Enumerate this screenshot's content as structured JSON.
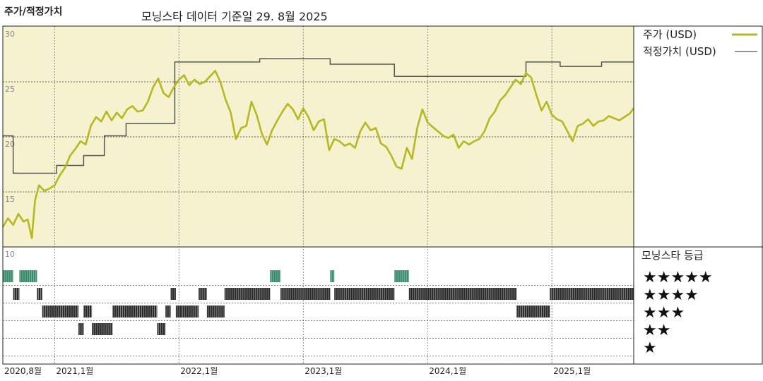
{
  "header": {
    "left_title": "주가/적정가치",
    "subtitle": "모닝스타 데이터 기준일 29. 8월 2025"
  },
  "chart_data": {
    "type": "line",
    "title": "주가/적정가치",
    "subtitle": "모닝스타 데이터 기준일 29. 8월 2025",
    "y_ticks": [
      "30",
      "25",
      "20",
      "15",
      "10"
    ],
    "ylim": [
      10,
      30
    ],
    "grid": true,
    "x_labels": [
      {
        "label": "2020,8월",
        "t": 0
      },
      {
        "label": "2021,1월",
        "t": 5
      },
      {
        "label": "2022,1월",
        "t": 17
      },
      {
        "label": "2023,1월",
        "t": 29
      },
      {
        "label": "2024,1월",
        "t": 41
      },
      {
        "label": "2025,1월",
        "t": 53
      }
    ],
    "t_range": [
      0,
      60.9
    ],
    "t_unit": "months since 2020-08",
    "legend": [
      {
        "name": "주가 (USD)",
        "color": "#b5b820",
        "style": "thick"
      },
      {
        "name": "적정가치 (USD)",
        "color": "#555555",
        "style": "thin"
      }
    ],
    "series": [
      {
        "name": "주가 (USD)",
        "color": "#b5b820",
        "points": [
          [
            0,
            11.8
          ],
          [
            0.5,
            12.6
          ],
          [
            1,
            12.0
          ],
          [
            1.5,
            13.0
          ],
          [
            2,
            12.3
          ],
          [
            2.4,
            12.5
          ],
          [
            2.8,
            10.8
          ],
          [
            3.1,
            14.2
          ],
          [
            3.5,
            15.6
          ],
          [
            4,
            15.1
          ],
          [
            4.5,
            15.3
          ],
          [
            5,
            15.6
          ],
          [
            5.5,
            16.5
          ],
          [
            6,
            17.2
          ],
          [
            6.5,
            18.3
          ],
          [
            7,
            18.9
          ],
          [
            7.5,
            19.6
          ],
          [
            8,
            19.3
          ],
          [
            8.5,
            21.0
          ],
          [
            9,
            21.8
          ],
          [
            9.5,
            21.4
          ],
          [
            10,
            22.3
          ],
          [
            10.5,
            21.5
          ],
          [
            11,
            22.2
          ],
          [
            11.5,
            21.7
          ],
          [
            12,
            22.5
          ],
          [
            12.5,
            22.8
          ],
          [
            13,
            22.3
          ],
          [
            13.5,
            22.4
          ],
          [
            14,
            23.2
          ],
          [
            14.5,
            24.5
          ],
          [
            15,
            25.3
          ],
          [
            15.5,
            24.0
          ],
          [
            16,
            23.6
          ],
          [
            16.5,
            24.5
          ],
          [
            17,
            25.2
          ],
          [
            17.5,
            25.6
          ],
          [
            18,
            24.7
          ],
          [
            18.5,
            25.2
          ],
          [
            19,
            24.8
          ],
          [
            19.5,
            25.0
          ],
          [
            20,
            25.5
          ],
          [
            20.5,
            26.0
          ],
          [
            21,
            25.0
          ],
          [
            21.5,
            23.4
          ],
          [
            22,
            22.2
          ],
          [
            22.5,
            19.8
          ],
          [
            23,
            20.8
          ],
          [
            23.5,
            21.0
          ],
          [
            24,
            23.2
          ],
          [
            24.5,
            22.0
          ],
          [
            25,
            20.3
          ],
          [
            25.5,
            19.3
          ],
          [
            26,
            20.6
          ],
          [
            26.5,
            21.5
          ],
          [
            27,
            22.3
          ],
          [
            27.5,
            23.0
          ],
          [
            28,
            22.5
          ],
          [
            28.5,
            21.6
          ],
          [
            29,
            22.6
          ],
          [
            29.5,
            21.8
          ],
          [
            30,
            20.6
          ],
          [
            30.5,
            21.4
          ],
          [
            31,
            21.6
          ],
          [
            31.5,
            18.8
          ],
          [
            32,
            19.8
          ],
          [
            32.5,
            19.6
          ],
          [
            33,
            19.2
          ],
          [
            33.5,
            19.4
          ],
          [
            34,
            19.0
          ],
          [
            34.5,
            20.5
          ],
          [
            35,
            21.3
          ],
          [
            35.5,
            20.6
          ],
          [
            36,
            20.8
          ],
          [
            36.5,
            19.4
          ],
          [
            37,
            19.1
          ],
          [
            37.5,
            18.3
          ],
          [
            38,
            17.3
          ],
          [
            38.5,
            17.1
          ],
          [
            39,
            19.0
          ],
          [
            39.5,
            18.0
          ],
          [
            40,
            20.8
          ],
          [
            40.5,
            22.5
          ],
          [
            41,
            21.3
          ],
          [
            41.5,
            20.9
          ],
          [
            42,
            20.5
          ],
          [
            42.5,
            20.1
          ],
          [
            43,
            19.9
          ],
          [
            43.5,
            20.2
          ],
          [
            44,
            19.0
          ],
          [
            44.5,
            19.6
          ],
          [
            45,
            19.3
          ],
          [
            45.5,
            19.6
          ],
          [
            46,
            19.8
          ],
          [
            46.5,
            20.5
          ],
          [
            47,
            21.7
          ],
          [
            47.5,
            22.3
          ],
          [
            48,
            23.3
          ],
          [
            48.5,
            23.8
          ],
          [
            49,
            24.5
          ],
          [
            49.5,
            25.2
          ],
          [
            50,
            24.8
          ],
          [
            50.5,
            25.8
          ],
          [
            51,
            25.4
          ],
          [
            51.5,
            23.8
          ],
          [
            52,
            22.4
          ],
          [
            52.5,
            23.2
          ],
          [
            53,
            22.0
          ],
          [
            53.5,
            21.6
          ],
          [
            54,
            21.4
          ],
          [
            54.5,
            20.5
          ],
          [
            55,
            19.6
          ],
          [
            55.5,
            21.0
          ],
          [
            56,
            21.2
          ],
          [
            56.5,
            21.6
          ],
          [
            57,
            21.0
          ],
          [
            57.5,
            21.4
          ],
          [
            58,
            21.5
          ],
          [
            58.5,
            21.9
          ],
          [
            59,
            21.7
          ],
          [
            59.5,
            21.5
          ],
          [
            60,
            21.8
          ],
          [
            60.5,
            22.1
          ],
          [
            60.9,
            22.6
          ]
        ]
      },
      {
        "name": "적정가치 (USD)",
        "color": "#555555",
        "steps": [
          [
            0,
            20.1
          ],
          [
            1,
            16.7
          ],
          [
            5.2,
            17.4
          ],
          [
            7.8,
            18.3
          ],
          [
            9.8,
            20.1
          ],
          [
            11.9,
            21.2
          ],
          [
            16.6,
            26.8
          ],
          [
            24.8,
            27.1
          ],
          [
            31.6,
            26.6
          ],
          [
            37.8,
            25.5
          ],
          [
            50.5,
            26.8
          ],
          [
            53.8,
            26.4
          ],
          [
            57.8,
            26.8
          ],
          [
            60.9,
            26.8
          ]
        ]
      }
    ],
    "ratings": {
      "title": "모닝스타 등급",
      "star_labels": [
        "★★★★★",
        "★★★★",
        "★★★",
        "★★",
        "★"
      ],
      "levels": [
        5,
        4,
        3,
        2,
        1
      ],
      "segments": [
        [
          0,
          1,
          5
        ],
        [
          1,
          1.6,
          4
        ],
        [
          1.6,
          3.3,
          5
        ],
        [
          3.3,
          3.8,
          4
        ],
        [
          3.8,
          5,
          3
        ],
        [
          5,
          7.3,
          3
        ],
        [
          7.3,
          7.8,
          2
        ],
        [
          7.8,
          8.6,
          3
        ],
        [
          8.6,
          10.6,
          2
        ],
        [
          10.6,
          14.9,
          3
        ],
        [
          14.9,
          15.7,
          2
        ],
        [
          15.7,
          16.2,
          3
        ],
        [
          16.2,
          16.7,
          4
        ],
        [
          16.7,
          17.2,
          3
        ],
        [
          17.2,
          18.9,
          3
        ],
        [
          18.9,
          19.7,
          4
        ],
        [
          19.7,
          21.4,
          3
        ],
        [
          21.4,
          25.8,
          4
        ],
        [
          25.8,
          26.8,
          5
        ],
        [
          26.8,
          31.6,
          4
        ],
        [
          31.6,
          32.0,
          5
        ],
        [
          32.0,
          37.8,
          4
        ],
        [
          37.8,
          39.2,
          5
        ],
        [
          39.2,
          49.6,
          4
        ],
        [
          49.6,
          52.8,
          3
        ],
        [
          52.8,
          60.9,
          4
        ]
      ]
    }
  }
}
